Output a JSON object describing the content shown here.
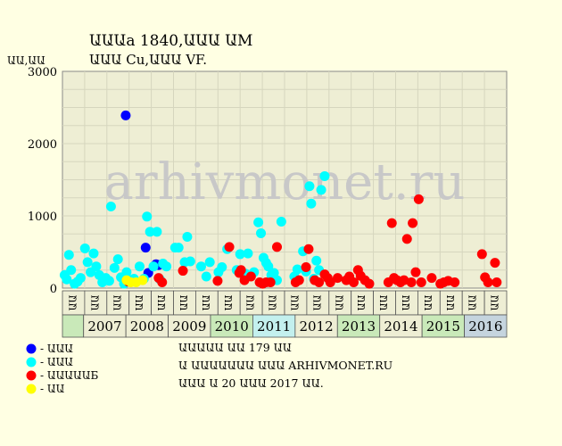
{
  "chart_data": {
    "type": "scatter",
    "title": "ԱԱԱa 1840,ԱԱԱ ԱM",
    "subtitle": "ԱԱԱ Cu,ԱԱԱ VF.",
    "ylabel": "ԱԱ,ԱԱ",
    "ylim": [
      0,
      3000
    ],
    "yticks": [
      0,
      1000,
      2000,
      3000
    ],
    "grid": true,
    "watermark": "arhivmonet.ru",
    "half_year_labels": [
      "ԱԱ",
      "ԱԱ",
      "ԱԱ",
      "ԱԱ",
      "ԱԱ",
      "ԱԱ",
      "ԱԱ",
      "ԱԱ",
      "ԱԱ",
      "ԱԱ",
      "ԱԱ",
      "ԱԱ",
      "ԱԱ",
      "ԱԱ",
      "ԱԱ",
      "ԱԱ",
      "ԱԱ",
      "ԱԱ",
      "ԱԱ",
      "ԱԱ"
    ],
    "years": [
      "2007",
      "2008",
      "2009",
      "2010",
      "2011",
      "2012",
      "2013",
      "2014",
      "2015",
      "2016"
    ],
    "year_colors": [
      "#eeeed4",
      "#eeeed4",
      "#eeeed4",
      "#c9e9b9",
      "#c3f0ee",
      "#eeeed4",
      "#c9e9b9",
      "#eeeed4",
      "#c9e9b9",
      "#c5d4de"
    ],
    "x_range": [
      2006.5,
      2016.75
    ],
    "series": [
      {
        "name": "ԱԱԱ",
        "color": "#0000FF",
        "points": [
          [
            2007.96,
            2390
          ],
          [
            2008.42,
            560
          ],
          [
            2008.48,
            210
          ],
          [
            2008.66,
            330
          ],
          [
            2008.72,
            320
          ]
        ]
      },
      {
        "name": "ԱԱԱ",
        "color": "#00FFFF",
        "points": [
          [
            2006.55,
            180
          ],
          [
            2006.6,
            120
          ],
          [
            2006.65,
            460
          ],
          [
            2006.7,
            250
          ],
          [
            2006.78,
            60
          ],
          [
            2006.85,
            90
          ],
          [
            2006.92,
            140
          ],
          [
            2007.02,
            550
          ],
          [
            2007.08,
            360
          ],
          [
            2007.15,
            220
          ],
          [
            2007.22,
            480
          ],
          [
            2007.28,
            300
          ],
          [
            2007.35,
            180
          ],
          [
            2007.42,
            80
          ],
          [
            2007.5,
            140
          ],
          [
            2007.58,
            100
          ],
          [
            2007.62,
            1130
          ],
          [
            2007.7,
            280
          ],
          [
            2007.78,
            400
          ],
          [
            2007.85,
            150
          ],
          [
            2007.92,
            60
          ],
          [
            2007.98,
            220
          ],
          [
            2008.05,
            110
          ],
          [
            2008.15,
            130
          ],
          [
            2008.28,
            300
          ],
          [
            2008.38,
            130
          ],
          [
            2008.45,
            990
          ],
          [
            2008.52,
            780
          ],
          [
            2008.6,
            300
          ],
          [
            2008.68,
            780
          ],
          [
            2008.75,
            120
          ],
          [
            2008.82,
            340
          ],
          [
            2008.9,
            300
          ],
          [
            2009.1,
            560
          ],
          [
            2009.18,
            560
          ],
          [
            2009.32,
            360
          ],
          [
            2009.38,
            710
          ],
          [
            2009.45,
            370
          ],
          [
            2009.7,
            300
          ],
          [
            2009.82,
            160
          ],
          [
            2009.9,
            360
          ],
          [
            2010.1,
            220
          ],
          [
            2010.18,
            290
          ],
          [
            2010.3,
            540
          ],
          [
            2010.52,
            250
          ],
          [
            2010.6,
            470
          ],
          [
            2010.72,
            200
          ],
          [
            2010.78,
            480
          ],
          [
            2010.92,
            220
          ],
          [
            2011.02,
            910
          ],
          [
            2011.08,
            760
          ],
          [
            2011.14,
            420
          ],
          [
            2011.2,
            350
          ],
          [
            2011.25,
            300
          ],
          [
            2011.32,
            180
          ],
          [
            2011.38,
            210
          ],
          [
            2011.45,
            110
          ],
          [
            2011.55,
            920
          ],
          [
            2011.85,
            160
          ],
          [
            2011.92,
            260
          ],
          [
            2012.05,
            510
          ],
          [
            2012.12,
            230
          ],
          [
            2012.2,
            1410
          ],
          [
            2012.24,
            1170
          ],
          [
            2012.3,
            130
          ],
          [
            2012.36,
            380
          ],
          [
            2012.42,
            250
          ],
          [
            2012.47,
            1360
          ],
          [
            2012.55,
            1550
          ]
        ]
      },
      {
        "name": "ԱԱԱԱԱБ",
        "color": "#FF0000",
        "points": [
          [
            2008.02,
            90
          ],
          [
            2008.72,
            140
          ],
          [
            2008.8,
            80
          ],
          [
            2009.28,
            240
          ],
          [
            2010.08,
            100
          ],
          [
            2010.35,
            570
          ],
          [
            2010.58,
            210
          ],
          [
            2010.62,
            250
          ],
          [
            2010.7,
            110
          ],
          [
            2010.85,
            160
          ],
          [
            2011.05,
            80
          ],
          [
            2011.12,
            60
          ],
          [
            2011.2,
            80
          ],
          [
            2011.3,
            80
          ],
          [
            2011.45,
            570
          ],
          [
            2011.88,
            80
          ],
          [
            2011.96,
            110
          ],
          [
            2012.12,
            290
          ],
          [
            2012.18,
            540
          ],
          [
            2012.32,
            110
          ],
          [
            2012.42,
            80
          ],
          [
            2012.55,
            190
          ],
          [
            2012.62,
            140
          ],
          [
            2012.68,
            80
          ],
          [
            2012.85,
            140
          ],
          [
            2013.05,
            110
          ],
          [
            2013.12,
            160
          ],
          [
            2013.22,
            80
          ],
          [
            2013.32,
            250
          ],
          [
            2013.38,
            170
          ],
          [
            2013.48,
            110
          ],
          [
            2013.58,
            60
          ],
          [
            2014.02,
            80
          ],
          [
            2014.1,
            900
          ],
          [
            2014.15,
            140
          ],
          [
            2014.22,
            110
          ],
          [
            2014.3,
            80
          ],
          [
            2014.38,
            110
          ],
          [
            2014.45,
            680
          ],
          [
            2014.55,
            80
          ],
          [
            2014.58,
            900
          ],
          [
            2014.65,
            220
          ],
          [
            2014.72,
            1230
          ],
          [
            2014.78,
            80
          ],
          [
            2015.02,
            140
          ],
          [
            2015.22,
            60
          ],
          [
            2015.3,
            80
          ],
          [
            2015.4,
            100
          ],
          [
            2015.55,
            80
          ],
          [
            2016.18,
            470
          ],
          [
            2016.25,
            150
          ],
          [
            2016.32,
            80
          ],
          [
            2016.48,
            350
          ],
          [
            2016.52,
            80
          ]
        ]
      },
      {
        "name": "ԱԱ",
        "color": "#FFFF00",
        "points": [
          [
            2007.98,
            110
          ],
          [
            2008.08,
            80
          ],
          [
            2008.2,
            80
          ],
          [
            2008.35,
            110
          ]
        ]
      }
    ],
    "notes": [
      "ԱԱԱԱԱ ԱԱ 179 ԱԱ",
      "Ա ԱԱԱԱԱԱԱ ԱԱԱ ARHIVMONET.RU",
      "ԱԱԱ Ա 20 ԱԱԱ 2017 ԱԱ."
    ]
  }
}
